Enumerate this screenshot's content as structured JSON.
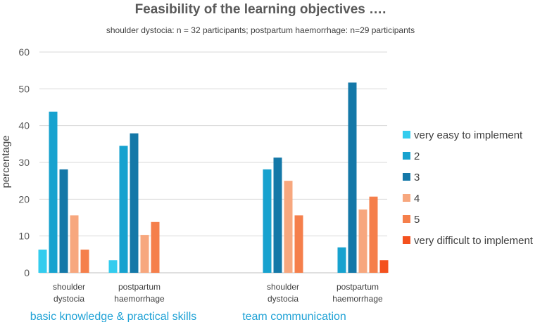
{
  "chart_data": {
    "type": "bar",
    "title": "Feasibility of the learning objectives ….",
    "subtitle": "shoulder dystocia: n = 32 participants; postpartum haemorrhage: n=29 participants",
    "ylabel": "percentage",
    "ylim": [
      0,
      60
    ],
    "yticks": [
      0,
      10,
      20,
      30,
      40,
      50,
      60
    ],
    "grid": true,
    "legend_position": "right",
    "groups": [
      "basic knowledge & practical skills",
      "team communication"
    ],
    "categories": [
      {
        "line1": "shoulder",
        "line2": "dystocia"
      },
      {
        "line1": "postpartum",
        "line2": "haemorrhage"
      },
      {
        "line1": "shoulder",
        "line2": "dystocia"
      },
      {
        "line1": "postpartum",
        "line2": "haemorrhage"
      }
    ],
    "series": [
      {
        "name": "very easy to implement",
        "color": "#33ccee",
        "values": [
          6.3,
          3.4,
          0,
          0
        ]
      },
      {
        "name": "2",
        "color": "#17a2cf",
        "values": [
          43.8,
          34.5,
          28.1,
          6.9
        ]
      },
      {
        "name": "3",
        "color": "#1478a8",
        "values": [
          28.1,
          37.9,
          31.3,
          51.7
        ]
      },
      {
        "name": "4",
        "color": "#f7a77e",
        "values": [
          15.6,
          10.3,
          25.0,
          17.2
        ]
      },
      {
        "name": "5",
        "color": "#f57f4b",
        "values": [
          6.3,
          13.8,
          15.6,
          20.7
        ]
      },
      {
        "name": "very difficult to implement",
        "color": "#f4511e",
        "values": [
          0,
          0,
          0,
          3.4
        ]
      }
    ]
  }
}
